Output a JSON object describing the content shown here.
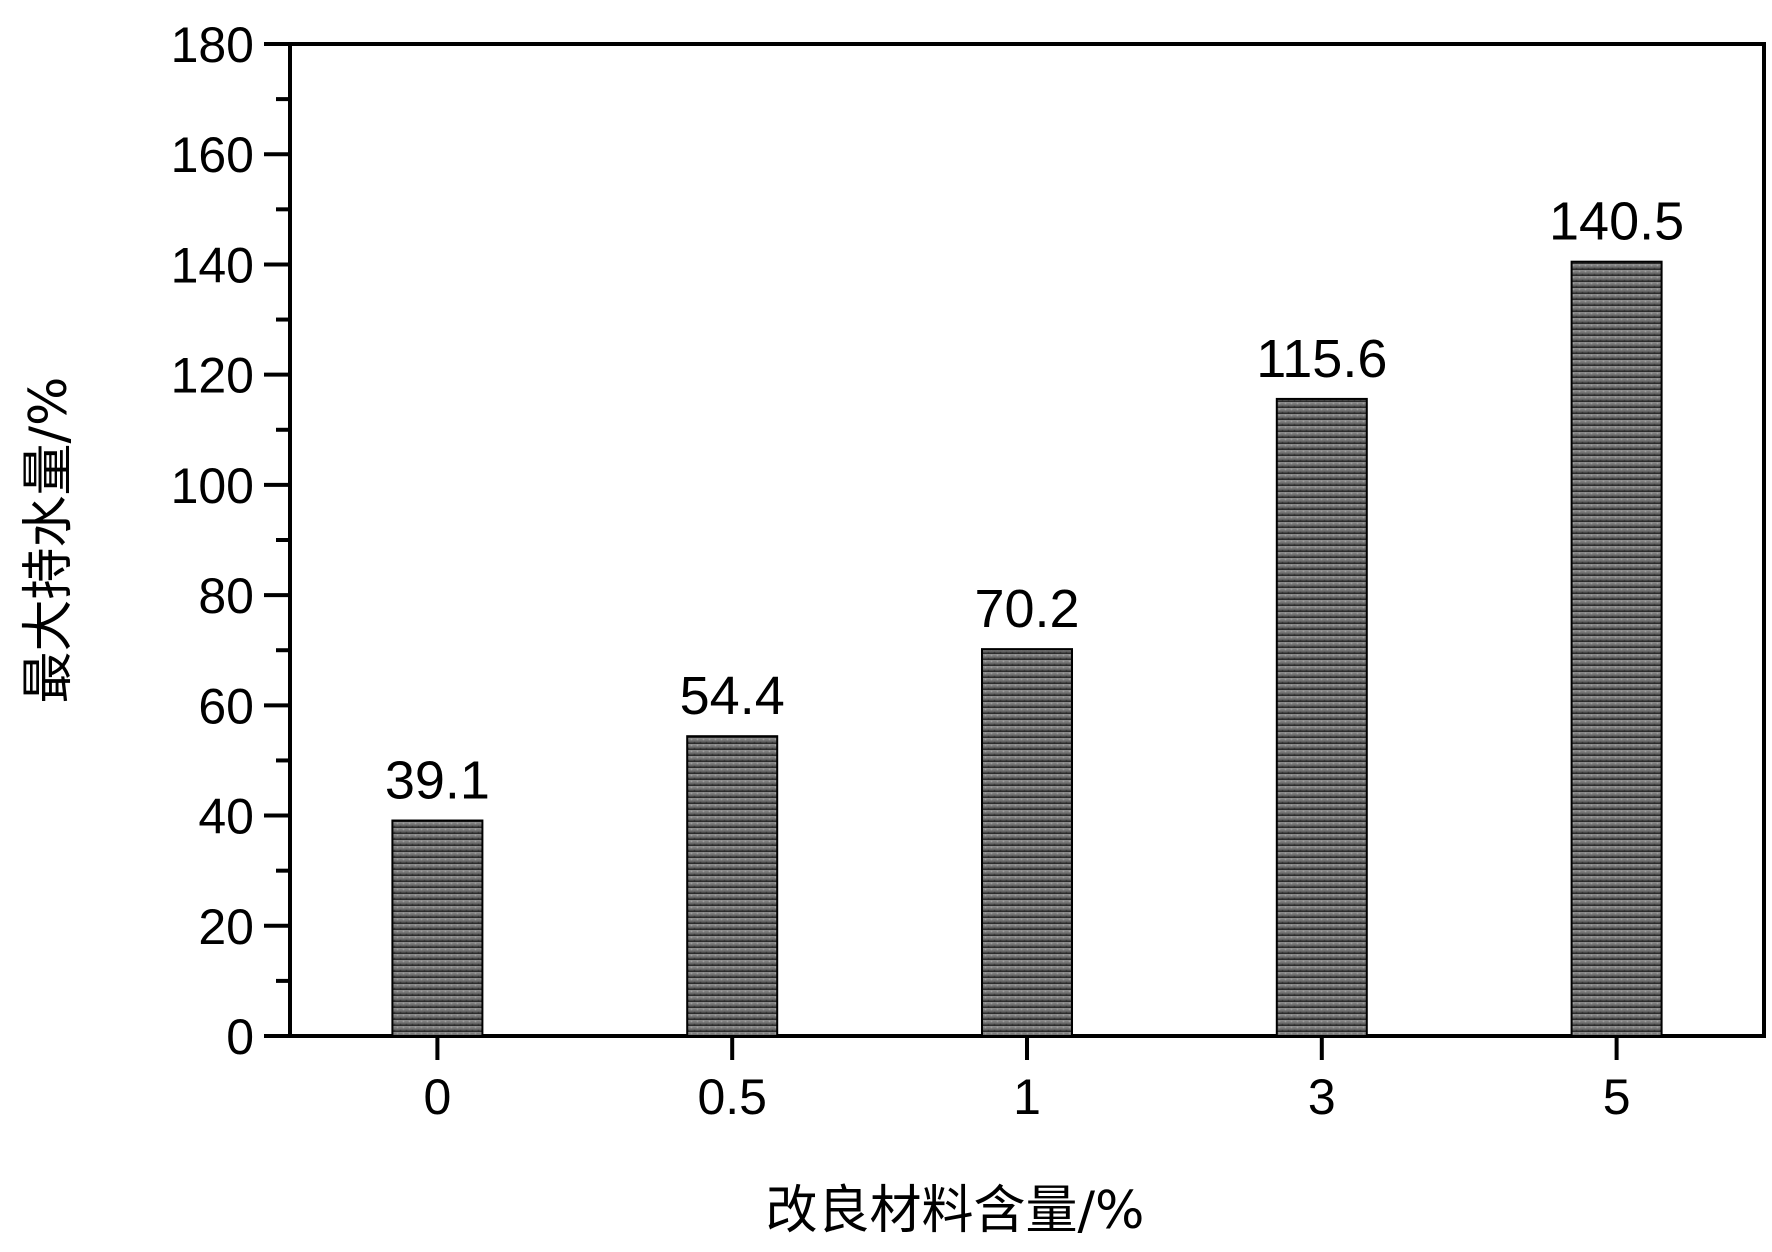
{
  "chart_data": {
    "type": "bar",
    "categories": [
      "0",
      "0.5",
      "1",
      "3",
      "5"
    ],
    "values": [
      39.1,
      54.4,
      70.2,
      115.6,
      140.5
    ],
    "data_labels": [
      "39.1",
      "54.4",
      "70.2",
      "115.6",
      "140.5"
    ],
    "title": "",
    "xlabel": "改良材料含量/%",
    "ylabel": "最大持水量/%",
    "ylim": [
      0,
      180
    ],
    "yticks": [
      0,
      20,
      40,
      60,
      80,
      100,
      120,
      140,
      160,
      180
    ],
    "ytick_labels": [
      "0",
      "20",
      "40",
      "60",
      "80",
      "100",
      "120",
      "140",
      "160",
      "180"
    ],
    "grid": false,
    "legend": "none",
    "colors": {
      "bar_top": "#8e8e8e",
      "bar_bottom": "#1e1e1e",
      "bar_outline": "#000000",
      "axis": "#000000"
    }
  }
}
